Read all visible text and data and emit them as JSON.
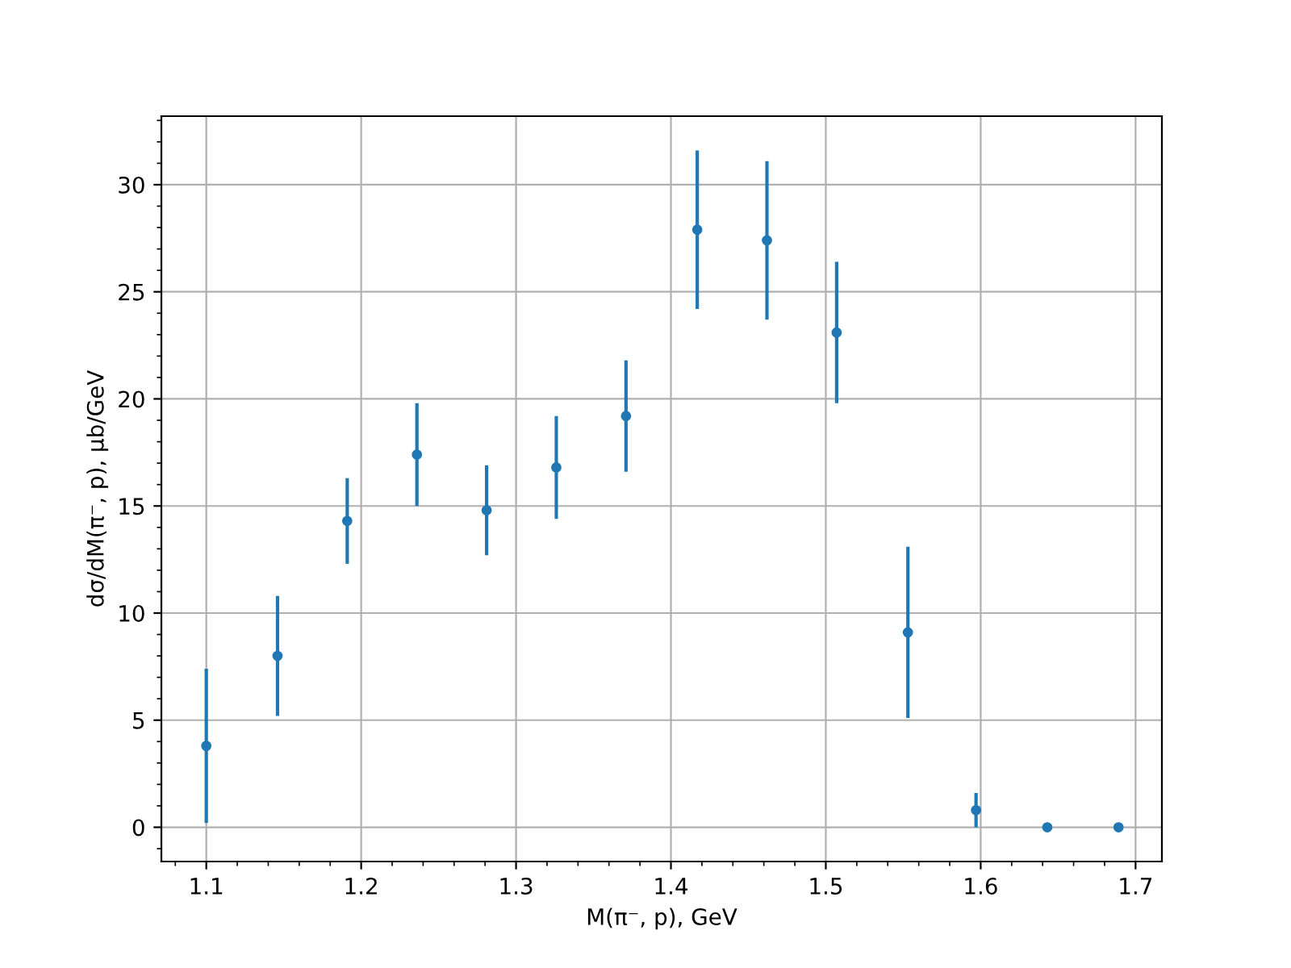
{
  "chart_data": {
    "type": "scatter",
    "xlabel": "M(π⁻, p), GeV",
    "ylabel": "dσ/dM(π⁻, p), μb/GeV",
    "x": [
      1.1,
      1.146,
      1.191,
      1.236,
      1.281,
      1.326,
      1.371,
      1.417,
      1.462,
      1.507,
      1.553,
      1.597,
      1.643,
      1.689
    ],
    "values": [
      3.8,
      8.0,
      14.3,
      17.4,
      14.8,
      16.8,
      19.2,
      27.9,
      27.4,
      23.1,
      9.1,
      0.8,
      0,
      0
    ],
    "errors": [
      3.6,
      2.8,
      2.0,
      2.4,
      2.1,
      2.4,
      2.6,
      3.7,
      3.7,
      3.3,
      4.0,
      0.8,
      null,
      null
    ],
    "color": "#1f77b4",
    "marker": "circle",
    "xlim": [
      1.071,
      1.717
    ],
    "ylim": [
      -1.6,
      33.2
    ],
    "xticks": [
      1.1,
      1.2,
      1.3,
      1.4,
      1.5,
      1.6,
      1.7
    ],
    "yticks": [
      0,
      5,
      10,
      15,
      20,
      25,
      30
    ],
    "grid": true
  }
}
